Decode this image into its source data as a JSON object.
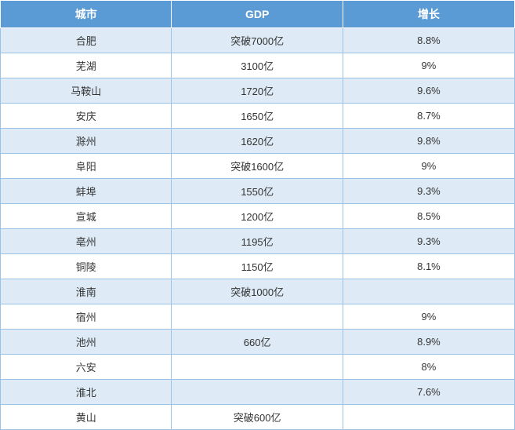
{
  "table": {
    "header_bg": "#5b9bd5",
    "header_text_color": "#ffffff",
    "header_border_color": "#ffffff",
    "row_odd_bg": "#deebf6",
    "row_even_bg": "#ffffff",
    "cell_border_color": "#9cc2e5",
    "cell_text_color": "#333333",
    "header_fontsize": 14,
    "cell_fontsize": 13,
    "columns": [
      {
        "label": "城市",
        "width": "33.3%"
      },
      {
        "label": "GDP",
        "width": "33.3%"
      },
      {
        "label": "增长",
        "width": "33.4%"
      }
    ],
    "rows": [
      {
        "city": "合肥",
        "gdp": "突破7000亿",
        "growth": "8.8%"
      },
      {
        "city": "芜湖",
        "gdp": "3100亿",
        "growth": "9%"
      },
      {
        "city": "马鞍山",
        "gdp": "1720亿",
        "growth": "9.6%"
      },
      {
        "city": "安庆",
        "gdp": "1650亿",
        "growth": "8.7%"
      },
      {
        "city": "滁州",
        "gdp": "1620亿",
        "growth": "9.8%"
      },
      {
        "city": "阜阳",
        "gdp": "突破1600亿",
        "growth": "9%"
      },
      {
        "city": "蚌埠",
        "gdp": "1550亿",
        "growth": "9.3%"
      },
      {
        "city": "宣城",
        "gdp": "1200亿",
        "growth": "8.5%"
      },
      {
        "city": "亳州",
        "gdp": "1195亿",
        "growth": "9.3%"
      },
      {
        "city": "铜陵",
        "gdp": "1150亿",
        "growth": "8.1%"
      },
      {
        "city": "淮南",
        "gdp": "突破1000亿",
        "growth": ""
      },
      {
        "city": "宿州",
        "gdp": "",
        "growth": "9%"
      },
      {
        "city": "池州",
        "gdp": "660亿",
        "growth": "8.9%"
      },
      {
        "city": "六安",
        "gdp": "",
        "growth": "8%"
      },
      {
        "city": "淮北",
        "gdp": "",
        "growth": "7.6%"
      },
      {
        "city": "黄山",
        "gdp": "突破600亿",
        "growth": ""
      }
    ]
  }
}
